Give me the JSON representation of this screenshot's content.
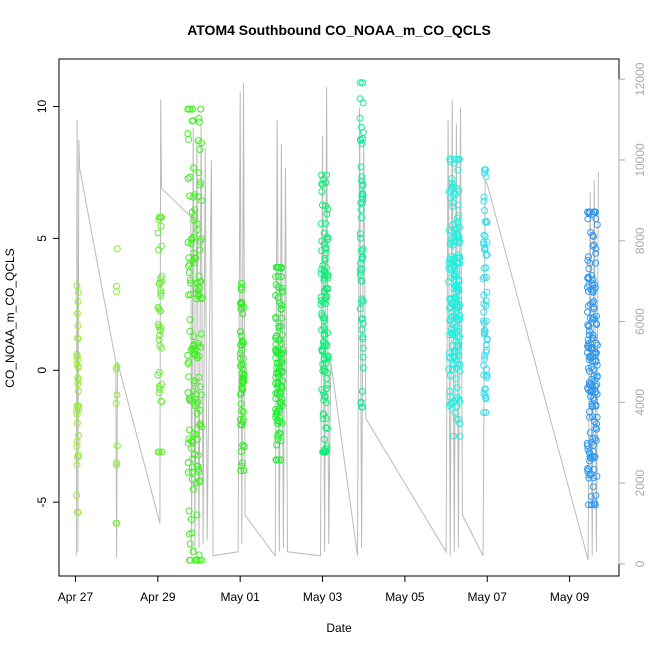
{
  "chart_data": {
    "type": "scatter",
    "title": "ATOM4 Southbound CO_NOAA_m_CO_QCLS",
    "xlabel": "Date",
    "ylabel": "CO_NOAA_m_CO_QCLS",
    "xlim_days": [
      -0.4,
      13.2
    ],
    "ylim": [
      -7.8,
      11.8
    ],
    "y2lim": [
      -300,
      12500
    ],
    "x_ticks": [
      {
        "day": 0,
        "label": "Apr 27"
      },
      {
        "day": 2,
        "label": "Apr 29"
      },
      {
        "day": 4,
        "label": "May 01"
      },
      {
        "day": 6,
        "label": "May 03"
      },
      {
        "day": 8,
        "label": "May 05"
      },
      {
        "day": 10,
        "label": "May 07"
      },
      {
        "day": 12,
        "label": "May 09"
      }
    ],
    "y_ticks": [
      {
        "value": -5,
        "label": "-5"
      },
      {
        "value": 0,
        "label": "0"
      },
      {
        "value": 5,
        "label": "5"
      },
      {
        "value": 10,
        "label": "10"
      }
    ],
    "y2_ticks": [
      {
        "value": 0,
        "label": "0"
      },
      {
        "value": 2000,
        "label": "2000"
      },
      {
        "value": 4000,
        "label": "4000"
      },
      {
        "value": 6000,
        "label": "6000"
      },
      {
        "value": 8000,
        "label": "8000"
      },
      {
        "value": 10000,
        "label": "10000"
      },
      {
        "value": 12000,
        "label": "12000"
      }
    ],
    "flights": [
      {
        "day": 0.05,
        "width": 0.06,
        "ymin": -5.4,
        "ymax": 3.2,
        "n": 34,
        "color": "#99ee33"
      },
      {
        "day": 1.0,
        "width": 0.04,
        "ymin": -5.8,
        "ymax": 4.6,
        "n": 12,
        "color": "#88ee33"
      },
      {
        "day": 2.05,
        "width": 0.1,
        "ymin": -3.1,
        "ymax": 5.8,
        "n": 40,
        "color": "#66ee33"
      },
      {
        "day": 2.9,
        "width": 0.35,
        "ymin": -7.2,
        "ymax": 9.9,
        "n": 150,
        "color": "#44ee22"
      },
      {
        "day": 4.05,
        "width": 0.1,
        "ymin": -3.8,
        "ymax": 3.3,
        "n": 60,
        "color": "#33ee22"
      },
      {
        "day": 4.95,
        "width": 0.18,
        "ymin": -3.4,
        "ymax": 3.9,
        "n": 110,
        "color": "#22ee33"
      },
      {
        "day": 6.05,
        "width": 0.18,
        "ymin": -3.1,
        "ymax": 7.4,
        "n": 110,
        "color": "#11ee77"
      },
      {
        "day": 6.95,
        "width": 0.08,
        "ymin": -1.4,
        "ymax": 10.9,
        "n": 60,
        "color": "#11ee99"
      },
      {
        "day": 9.2,
        "width": 0.28,
        "ymin": -2.5,
        "ymax": 8.0,
        "n": 180,
        "color": "#22eedd"
      },
      {
        "day": 9.95,
        "width": 0.1,
        "ymin": -1.6,
        "ymax": 7.6,
        "n": 60,
        "color": "#33ddee"
      },
      {
        "day": 12.55,
        "width": 0.25,
        "ymin": -5.1,
        "ymax": 6.0,
        "n": 170,
        "color": "#3399ee"
      }
    ],
    "altitude_path": [
      [
        0.02,
        200
      ],
      [
        0.04,
        11000
      ],
      [
        0.06,
        300
      ],
      [
        0.08,
        10500
      ],
      [
        0.1,
        9800
      ],
      [
        0.98,
        5000
      ],
      [
        1.0,
        150
      ],
      [
        1.02,
        5000
      ],
      [
        2.05,
        1000
      ],
      [
        2.07,
        11500
      ],
      [
        2.09,
        9300
      ],
      [
        2.8,
        8600
      ],
      [
        2.82,
        200
      ],
      [
        2.86,
        10800
      ],
      [
        2.9,
        300
      ],
      [
        2.95,
        10500
      ],
      [
        3.0,
        400
      ],
      [
        3.05,
        10900
      ],
      [
        3.1,
        500
      ],
      [
        3.15,
        10300
      ],
      [
        3.2,
        600
      ],
      [
        3.3,
        10000
      ],
      [
        3.34,
        200
      ],
      [
        3.95,
        300
      ],
      [
        4.0,
        11700
      ],
      [
        4.04,
        500
      ],
      [
        4.08,
        11900
      ],
      [
        4.12,
        1200
      ],
      [
        4.85,
        200
      ],
      [
        4.9,
        11000
      ],
      [
        4.95,
        300
      ],
      [
        5.0,
        10400
      ],
      [
        5.05,
        400
      ],
      [
        5.1,
        9800
      ],
      [
        5.15,
        300
      ],
      [
        5.95,
        200
      ],
      [
        6.0,
        10600
      ],
      [
        6.05,
        300
      ],
      [
        6.1,
        11800
      ],
      [
        6.15,
        500
      ],
      [
        6.2,
        5000
      ],
      [
        6.85,
        200
      ],
      [
        6.9,
        11300
      ],
      [
        6.95,
        400
      ],
      [
        7.0,
        10500
      ],
      [
        7.05,
        3600
      ],
      [
        9.0,
        300
      ],
      [
        9.05,
        11000
      ],
      [
        9.1,
        200
      ],
      [
        9.15,
        11500
      ],
      [
        9.2,
        300
      ],
      [
        9.25,
        10900
      ],
      [
        9.3,
        400
      ],
      [
        9.35,
        11300
      ],
      [
        9.4,
        1200
      ],
      [
        9.9,
        200
      ],
      [
        9.95,
        9500
      ],
      [
        10.0,
        9400
      ],
      [
        12.45,
        100
      ],
      [
        12.5,
        9200
      ],
      [
        12.55,
        200
      ],
      [
        12.6,
        9500
      ],
      [
        12.65,
        300
      ],
      [
        12.7,
        9700
      ]
    ]
  }
}
